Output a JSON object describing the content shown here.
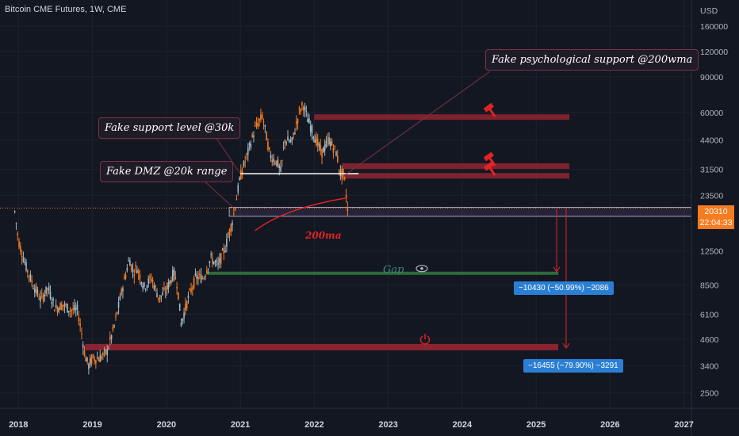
{
  "title": "Bitcoin CME Futures, 1W, CME",
  "currency": "USD",
  "last_price": "20310",
  "countdown": "22:04:33",
  "annotations": {
    "psych": "Fake psychological support @200wma",
    "support30k": "Fake support level @30k",
    "dmz20k": "Fake DMZ @20k range",
    "ma": "200ma",
    "gap": "Gap"
  },
  "measures": {
    "first": "−10430 (−50.99%) −2086",
    "second": "−16455 (−79.90%) −3291"
  },
  "colors": {
    "background": "#131722",
    "candle": "#f57c1f",
    "callout_border": "#7a3440",
    "zone_red": "#8b2430",
    "gap_green": "#2e6b3a",
    "dmz_band": "#6a4f8c",
    "measure_blue": "#2a7fd4",
    "ma_red": "#e02424"
  },
  "icons": [
    "hammer-icon",
    "eye-icon",
    "power-icon"
  ],
  "chart_data": {
    "type": "candlestick",
    "scale": "log",
    "x_ticks": [
      "2018",
      "2019",
      "2020",
      "2021",
      "2022",
      "2023",
      "2024",
      "2025",
      "2026",
      "2027"
    ],
    "y_ticks": [
      "160000",
      "120000",
      "90000",
      "60000",
      "44000",
      "31500",
      "23500",
      "12500",
      "8500",
      "6100",
      "4600",
      "3400",
      "2500"
    ],
    "ylim": [
      2100,
      215000
    ],
    "xlim": [
      2017.75,
      2027.1
    ],
    "price_path": [
      [
        2017.95,
        19500
      ],
      [
        2018.0,
        14000
      ],
      [
        2018.1,
        10500
      ],
      [
        2018.2,
        8500
      ],
      [
        2018.3,
        7200
      ],
      [
        2018.4,
        8200
      ],
      [
        2018.5,
        6500
      ],
      [
        2018.6,
        6800
      ],
      [
        2018.7,
        6400
      ],
      [
        2018.8,
        6400
      ],
      [
        2018.85,
        5000
      ],
      [
        2018.9,
        3800
      ],
      [
        2018.95,
        3400
      ],
      [
        2019.0,
        3700
      ],
      [
        2019.1,
        3700
      ],
      [
        2019.2,
        4000
      ],
      [
        2019.3,
        5400
      ],
      [
        2019.4,
        8000
      ],
      [
        2019.5,
        11500
      ],
      [
        2019.55,
        9800
      ],
      [
        2019.6,
        10400
      ],
      [
        2019.7,
        8300
      ],
      [
        2019.8,
        9200
      ],
      [
        2019.9,
        7300
      ],
      [
        2020.0,
        8000
      ],
      [
        2020.1,
        9800
      ],
      [
        2020.15,
        8500
      ],
      [
        2020.2,
        5500
      ],
      [
        2020.3,
        7400
      ],
      [
        2020.4,
        9300
      ],
      [
        2020.5,
        9200
      ],
      [
        2020.6,
        11500
      ],
      [
        2020.7,
        10600
      ],
      [
        2020.8,
        13100
      ],
      [
        2020.9,
        18000
      ],
      [
        2021.0,
        29000
      ],
      [
        2021.1,
        38000
      ],
      [
        2021.2,
        50000
      ],
      [
        2021.3,
        58000
      ],
      [
        2021.4,
        37000
      ],
      [
        2021.5,
        34000
      ],
      [
        2021.55,
        30500
      ],
      [
        2021.6,
        44000
      ],
      [
        2021.7,
        43000
      ],
      [
        2021.8,
        61000
      ],
      [
        2021.85,
        66000
      ],
      [
        2021.9,
        57000
      ],
      [
        2022.0,
        46000
      ],
      [
        2022.1,
        38000
      ],
      [
        2022.2,
        44000
      ],
      [
        2022.3,
        38000
      ],
      [
        2022.35,
        30000
      ],
      [
        2022.4,
        30000
      ],
      [
        2022.45,
        20310
      ]
    ],
    "levels": {
      "support_30k": 30000,
      "dmz_20k_high": 20500,
      "dmz_20k_low": 18500,
      "gap": 9700,
      "bottom_zone": 4200,
      "resistance_zones": [
        57000,
        32700,
        29300
      ],
      "last_price": 20310
    },
    "measure_targets": [
      9880,
      4150
    ]
  }
}
